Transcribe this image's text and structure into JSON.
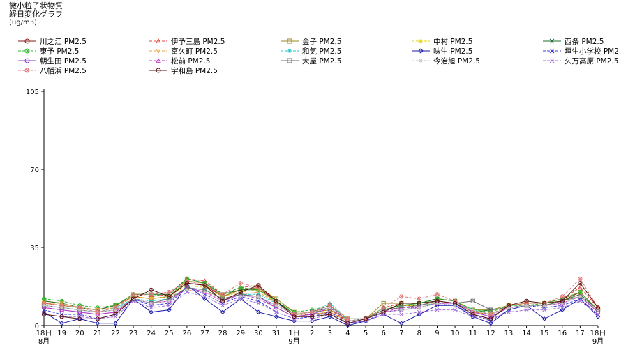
{
  "chart_data": {
    "type": "line",
    "title": "微小粒子状物質",
    "subtitle": "経日変化グラフ",
    "unit": "(ug/m3)",
    "ylim": [
      0,
      105
    ],
    "yticks": [
      "105",
      "70",
      "35",
      "0"
    ],
    "ytick_values": [
      105,
      70,
      35,
      0
    ],
    "x": [
      "18",
      "19",
      "20",
      "21",
      "22",
      "23",
      "24",
      "25",
      "26",
      "27",
      "28",
      "29",
      "30",
      "31",
      "1",
      "2",
      "3",
      "4",
      "5",
      "6",
      "7",
      "8",
      "9",
      "10",
      "11",
      "12",
      "13",
      "14",
      "15",
      "16",
      "17",
      "18"
    ],
    "xtick_suffix": {
      "0": "日",
      "14": "日",
      "31": "日"
    },
    "month_labels": [
      {
        "index": 0,
        "text": "8月"
      },
      {
        "index": 14,
        "text": "9月"
      },
      {
        "index": 31,
        "text": "9月"
      }
    ],
    "legend_position": "top",
    "series": [
      {
        "name": "川之江 PM2.5",
        "color": "#8b1a1a",
        "marker": "circle",
        "dash": "",
        "values": [
          10,
          9,
          8,
          7,
          9,
          13,
          12,
          13,
          19,
          18,
          13,
          16,
          17,
          11,
          5,
          5,
          6,
          2,
          3,
          7,
          9,
          9,
          11,
          10,
          6,
          5,
          8,
          9,
          9,
          11,
          15,
          7
        ]
      },
      {
        "name": "伊予三島 PM2.5",
        "color": "#e8423c",
        "marker": "triangle",
        "dash": "4 2",
        "values": [
          11,
          10,
          8,
          7,
          9,
          14,
          13,
          14,
          21,
          20,
          14,
          17,
          18,
          11,
          5,
          6,
          7,
          2,
          3,
          8,
          10,
          10,
          12,
          11,
          7,
          5,
          9,
          10,
          10,
          12,
          17,
          8
        ]
      },
      {
        "name": "金子 PM2.5",
        "color": "#9a8a1e",
        "marker": "square",
        "dash": "",
        "values": [
          10,
          9,
          8,
          7,
          9,
          13,
          12,
          13,
          20,
          19,
          13,
          16,
          17,
          12,
          6,
          6,
          7,
          3,
          3,
          10,
          10,
          10,
          12,
          11,
          7,
          7,
          9,
          10,
          10,
          12,
          15,
          7
        ]
      },
      {
        "name": "中村 PM2.5",
        "color": "#e6d21f",
        "marker": "star",
        "dash": "4 2",
        "values": [
          11,
          10,
          8,
          7,
          8,
          13,
          12,
          13,
          18,
          17,
          13,
          15,
          16,
          10,
          5,
          5,
          6,
          2,
          3,
          7,
          9,
          9,
          11,
          10,
          6,
          5,
          8,
          9,
          9,
          11,
          14,
          7
        ]
      },
      {
        "name": "西条 PM2.5",
        "color": "#1e6b2e",
        "marker": "x",
        "dash": "",
        "values": [
          11,
          10,
          8,
          7,
          9,
          14,
          14,
          14,
          21,
          19,
          14,
          16,
          16,
          11,
          5,
          6,
          8,
          2,
          3,
          7,
          9,
          10,
          12,
          11,
          6,
          7,
          8,
          9,
          9,
          11,
          14,
          7
        ]
      },
      {
        "name": "東予 PM2.5",
        "color": "#2bb52b",
        "marker": "circle-x",
        "dash": "4 2",
        "values": [
          12,
          11,
          9,
          8,
          9,
          14,
          14,
          13,
          21,
          19,
          14,
          17,
          16,
          11,
          6,
          7,
          9,
          3,
          3,
          8,
          9,
          10,
          12,
          11,
          7,
          6,
          9,
          9,
          10,
          12,
          15,
          7
        ]
      },
      {
        "name": "富久町 PM2.5",
        "color": "#e8a54a",
        "marker": "triangle-down",
        "dash": "4 2",
        "values": [
          10,
          10,
          8,
          7,
          8,
          13,
          12,
          13,
          16,
          15,
          12,
          14,
          15,
          10,
          5,
          5,
          6,
          2,
          3,
          7,
          8,
          9,
          10,
          10,
          6,
          5,
          8,
          9,
          9,
          10,
          13,
          7
        ]
      },
      {
        "name": "和気 PM2.5",
        "color": "#22c8cc",
        "marker": "star",
        "dash": "4 2",
        "values": [
          9,
          8,
          7,
          6,
          8,
          12,
          11,
          12,
          17,
          16,
          12,
          14,
          14,
          10,
          5,
          6,
          10,
          3,
          3,
          7,
          8,
          9,
          10,
          10,
          7,
          5,
          8,
          9,
          9,
          10,
          13,
          7
        ]
      },
      {
        "name": "味生 PM2.5",
        "color": "#1a1aa8",
        "marker": "diamond",
        "dash": "",
        "values": [
          6,
          1,
          3,
          1,
          1,
          12,
          6,
          7,
          18,
          12,
          6,
          12,
          6,
          4,
          2,
          2,
          4,
          0,
          2,
          5,
          1,
          5,
          9,
          9,
          4,
          1,
          7,
          9,
          3,
          7,
          12,
          4
        ]
      },
      {
        "name": "垣生小学校 PM2.",
        "color": "#3a3ad8",
        "marker": "x",
        "dash": "4 2",
        "values": [
          7,
          5,
          5,
          3,
          5,
          12,
          9,
          10,
          17,
          14,
          10,
          13,
          11,
          6,
          3,
          4,
          6,
          1,
          2,
          6,
          7,
          8,
          10,
          9,
          5,
          2,
          7,
          9,
          8,
          9,
          12,
          5
        ]
      },
      {
        "name": "朝生田 PM2.5",
        "color": "#8a3ac8",
        "marker": "circle",
        "dash": "",
        "values": [
          8,
          7,
          6,
          5,
          6,
          12,
          10,
          11,
          17,
          15,
          11,
          14,
          13,
          8,
          4,
          5,
          8,
          2,
          3,
          6,
          7,
          8,
          10,
          10,
          6,
          4,
          8,
          9,
          9,
          10,
          13,
          6
        ]
      },
      {
        "name": "松前 PM2.5",
        "color": "#c83ac8",
        "marker": "triangle",
        "dash": "4 2",
        "values": [
          8,
          7,
          6,
          5,
          6,
          12,
          10,
          11,
          17,
          15,
          11,
          14,
          12,
          8,
          4,
          5,
          8,
          2,
          3,
          6,
          8,
          8,
          10,
          10,
          6,
          4,
          8,
          9,
          9,
          10,
          13,
          6
        ]
      },
      {
        "name": "大屋 PM2.5",
        "color": "#6e6e6e",
        "marker": "square",
        "dash": "",
        "values": [
          9,
          8,
          7,
          6,
          7,
          12,
          10,
          12,
          17,
          16,
          12,
          14,
          13,
          9,
          5,
          6,
          9,
          2,
          3,
          7,
          8,
          9,
          11,
          10,
          11,
          7,
          8,
          9,
          9,
          11,
          13,
          7
        ]
      },
      {
        "name": "今治旭 PM2.5",
        "color": "#c8c8c8",
        "marker": "star",
        "dash": "4 2",
        "values": [
          9,
          8,
          7,
          6,
          7,
          12,
          10,
          11,
          16,
          15,
          11,
          13,
          13,
          9,
          5,
          6,
          8,
          2,
          3,
          6,
          7,
          8,
          10,
          9,
          7,
          5,
          8,
          9,
          9,
          10,
          13,
          7
        ]
      },
      {
        "name": "久万高原 PM2.5",
        "color": "#a070d8",
        "marker": "x",
        "dash": "4 2",
        "values": [
          5,
          4,
          4,
          3,
          4,
          11,
          8,
          9,
          15,
          13,
          9,
          12,
          10,
          6,
          3,
          3,
          5,
          1,
          2,
          5,
          5,
          6,
          7,
          7,
          4,
          3,
          6,
          7,
          7,
          8,
          11,
          5
        ]
      },
      {
        "name": "八幡浜 PM2.5",
        "color": "#e07878",
        "marker": "circle-x",
        "dash": "4 2",
        "values": [
          10,
          9,
          8,
          6,
          8,
          14,
          14,
          15,
          20,
          18,
          14,
          19,
          17,
          10,
          5,
          6,
          9,
          3,
          3,
          8,
          13,
          12,
          14,
          11,
          6,
          5,
          9,
          10,
          10,
          13,
          21,
          8
        ]
      },
      {
        "name": "宇和島 PM2.5",
        "color": "#5a1010",
        "marker": "circle",
        "dash": "",
        "values": [
          5,
          4,
          3,
          3,
          5,
          12,
          16,
          13,
          19,
          18,
          11,
          15,
          18,
          11,
          4,
          4,
          5,
          1,
          3,
          6,
          10,
          10,
          11,
          10,
          5,
          3,
          9,
          11,
          10,
          11,
          19,
          8
        ]
      }
    ]
  }
}
